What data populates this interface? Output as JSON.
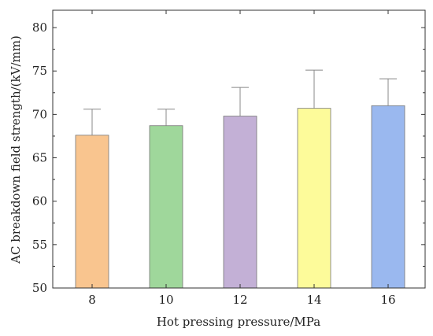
{
  "chart_data": {
    "type": "bar",
    "title": "",
    "xlabel": "Hot pressing pressure/MPa",
    "ylabel": "AC breakdown field strength/(kV/mm)",
    "categories": [
      "8",
      "10",
      "12",
      "14",
      "16"
    ],
    "values": [
      67.6,
      68.7,
      69.8,
      70.7,
      71.0
    ],
    "error_upper": [
      70.6,
      70.6,
      73.1,
      75.1,
      74.1
    ],
    "bar_colors": [
      "#f9c58f",
      "#9fd79b",
      "#c3b0d6",
      "#fdfb9a",
      "#9ab8ef"
    ],
    "ylim": [
      50,
      82
    ],
    "yticks": [
      50,
      55,
      60,
      65,
      70,
      75,
      80
    ],
    "grid": false,
    "legend": "none"
  }
}
